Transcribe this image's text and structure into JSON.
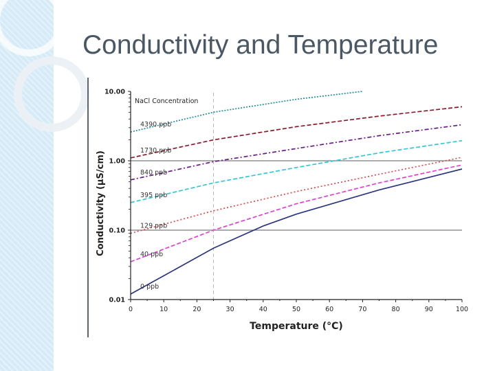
{
  "slide": {
    "title": "Conductivity and Temperature"
  },
  "chart_data": {
    "type": "line",
    "ylog": true,
    "xlabel": "Temperature (°C)",
    "ylabel": "Conductivity (μS/cm)",
    "legend_title": "NaCl Concentration",
    "xlim": [
      0,
      100
    ],
    "ylim": [
      0.01,
      10
    ],
    "x_ticks": [
      0,
      10,
      20,
      30,
      40,
      50,
      60,
      70,
      80,
      90,
      100
    ],
    "y_ticks": [
      0.01,
      0.1,
      1,
      10
    ],
    "y_tick_labels": [
      "0.01",
      "0.10",
      "1.00",
      "10.00"
    ],
    "hlines": [
      0.1,
      1
    ],
    "vline": 25,
    "series": [
      {
        "name": "4390 ppb",
        "color": "#1f8f9a",
        "dash": "2,2",
        "x": [
          0,
          25,
          50,
          70
        ],
        "y": [
          2.6,
          5.0,
          7.7,
          10.0
        ]
      },
      {
        "name": "1730 ppb",
        "color": "#8b1a2a",
        "dash": "6,3",
        "x": [
          0,
          25,
          50,
          75,
          100
        ],
        "y": [
          1.1,
          2.0,
          3.1,
          4.4,
          6.0
        ]
      },
      {
        "name": "840 ppb",
        "color": "#6a1a8a",
        "dash": "6,3,2,3",
        "x": [
          0,
          25,
          50,
          75,
          100
        ],
        "y": [
          0.53,
          0.97,
          1.5,
          2.3,
          3.3
        ]
      },
      {
        "name": "395 ppb",
        "color": "#2ec8d8",
        "dash": "6,3",
        "x": [
          0,
          25,
          50,
          75,
          100
        ],
        "y": [
          0.25,
          0.48,
          0.8,
          1.3,
          1.95
        ]
      },
      {
        "name": "129 ppb",
        "color": "#e0454a",
        "dash": "2,3",
        "x": [
          0,
          25,
          50,
          75,
          100
        ],
        "y": [
          0.09,
          0.19,
          0.36,
          0.64,
          1.12
        ]
      },
      {
        "name": "40 ppb",
        "color": "#e040d0",
        "dash": "6,3",
        "x": [
          0,
          25,
          50,
          75,
          100
        ],
        "y": [
          0.035,
          0.1,
          0.24,
          0.48,
          0.87
        ]
      },
      {
        "name": "0 ppb",
        "color": "#2a3580",
        "dash": "",
        "x": [
          0,
          10,
          25,
          40,
          50,
          75,
          100
        ],
        "y": [
          0.012,
          0.022,
          0.055,
          0.115,
          0.17,
          0.38,
          0.76
        ]
      }
    ]
  }
}
